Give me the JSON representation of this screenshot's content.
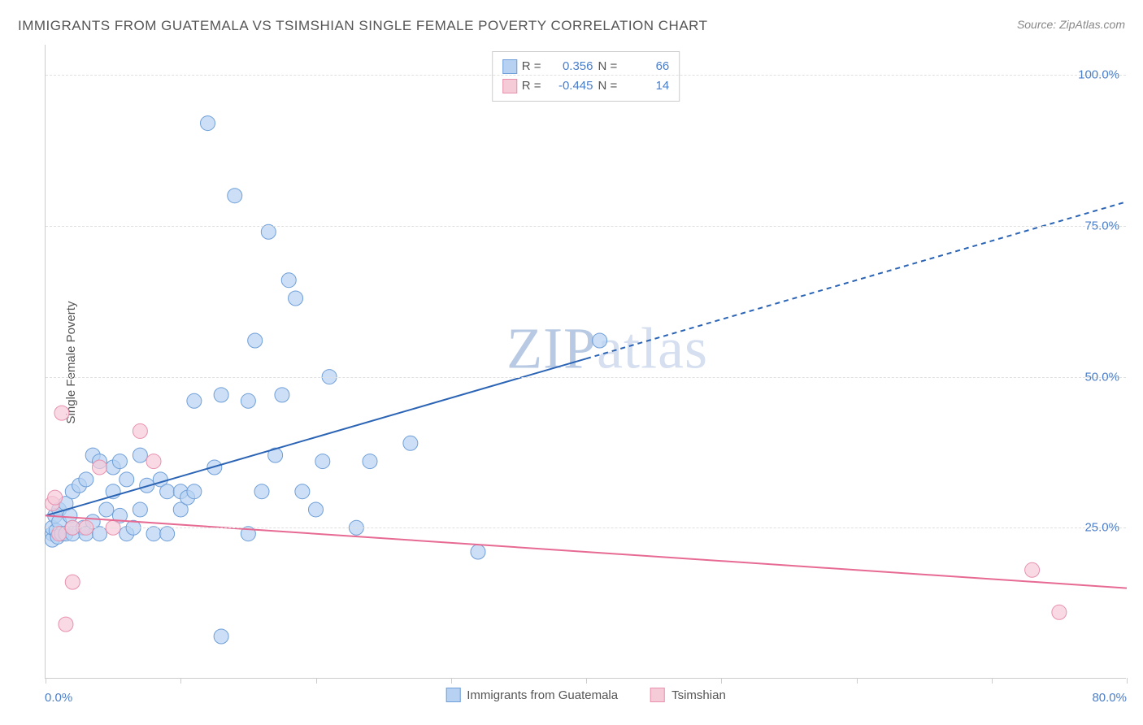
{
  "title": "IMMIGRANTS FROM GUATEMALA VS TSIMSHIAN SINGLE FEMALE POVERTY CORRELATION CHART",
  "source": "Source: ZipAtlas.com",
  "watermark": "ZIPatlas",
  "ylabel": "Single Female Poverty",
  "chart": {
    "type": "scatter",
    "background_color": "#ffffff",
    "grid_color": "#e0e0e0",
    "grid_dash": true,
    "xlim": [
      0,
      80
    ],
    "ylim": [
      0,
      105
    ],
    "xtick_label_0": "0.0%",
    "xtick_label_80": "80.0%",
    "xticks": [
      0,
      10,
      20,
      30,
      40,
      50,
      60,
      70,
      80
    ],
    "yticks": [
      {
        "v": 25,
        "label": "25.0%"
      },
      {
        "v": 50,
        "label": "50.0%"
      },
      {
        "v": 75,
        "label": "75.0%"
      },
      {
        "v": 100,
        "label": "100.0%"
      }
    ],
    "series": [
      {
        "name": "Immigrants from Guatemala",
        "color_fill": "#b7d1f2",
        "color_stroke": "#6f9fd8",
        "marker_radius": 9,
        "marker_opacity": 0.7,
        "r_label": "R =",
        "r_value": "0.356",
        "n_label": "N =",
        "n_value": "66",
        "trend": {
          "color": "#2b64b5",
          "width": 2,
          "solid_x": [
            0,
            40
          ],
          "solid_y": [
            27,
            53
          ],
          "dash_x": [
            40,
            80
          ],
          "dash_y": [
            53,
            79
          ]
        },
        "points": [
          [
            0.5,
            24
          ],
          [
            0.5,
            23
          ],
          [
            0.5,
            25
          ],
          [
            0.7,
            27
          ],
          [
            0.8,
            24.5
          ],
          [
            0.9,
            23.5
          ],
          [
            1,
            26
          ],
          [
            1,
            28
          ],
          [
            1.2,
            24
          ],
          [
            1.5,
            29
          ],
          [
            1.5,
            24
          ],
          [
            1.8,
            27
          ],
          [
            2,
            24
          ],
          [
            2,
            31
          ],
          [
            2,
            25
          ],
          [
            2.5,
            32
          ],
          [
            2.8,
            25
          ],
          [
            3,
            24
          ],
          [
            3,
            33
          ],
          [
            3.5,
            26
          ],
          [
            3.5,
            37
          ],
          [
            4,
            36
          ],
          [
            4,
            24
          ],
          [
            4.5,
            28
          ],
          [
            5,
            35
          ],
          [
            5,
            31
          ],
          [
            5.5,
            27
          ],
          [
            5.5,
            36
          ],
          [
            6,
            24
          ],
          [
            6,
            33
          ],
          [
            6.5,
            25
          ],
          [
            7,
            37
          ],
          [
            7,
            28
          ],
          [
            7.5,
            32
          ],
          [
            8,
            24
          ],
          [
            8.5,
            33
          ],
          [
            9,
            31
          ],
          [
            9,
            24
          ],
          [
            10,
            28
          ],
          [
            10,
            31
          ],
          [
            10.5,
            30
          ],
          [
            11,
            31
          ],
          [
            11,
            46
          ],
          [
            12,
            92
          ],
          [
            12.5,
            35
          ],
          [
            13,
            47
          ],
          [
            14,
            80
          ],
          [
            15,
            24
          ],
          [
            15,
            46
          ],
          [
            15.5,
            56
          ],
          [
            16,
            31
          ],
          [
            16.5,
            74
          ],
          [
            17,
            37
          ],
          [
            17.5,
            47
          ],
          [
            18,
            66
          ],
          [
            18.5,
            63
          ],
          [
            19,
            31
          ],
          [
            20,
            28
          ],
          [
            20.5,
            36
          ],
          [
            21,
            50
          ],
          [
            23,
            25
          ],
          [
            24,
            36
          ],
          [
            27,
            39
          ],
          [
            32,
            21
          ],
          [
            13,
            7
          ],
          [
            41,
            56
          ]
        ]
      },
      {
        "name": "Tsimshian",
        "color_fill": "#f6cbd8",
        "color_stroke": "#e890ad",
        "marker_radius": 9,
        "marker_opacity": 0.7,
        "r_label": "R =",
        "r_value": "-0.445",
        "n_label": "N =",
        "n_value": "14",
        "trend": {
          "color": "#e76a93",
          "width": 2,
          "solid_x": [
            0,
            80
          ],
          "solid_y": [
            27,
            15
          ],
          "dash_x": null,
          "dash_y": null
        },
        "points": [
          [
            0.5,
            29
          ],
          [
            0.7,
            30
          ],
          [
            1,
            24
          ],
          [
            1.2,
            44
          ],
          [
            1.5,
            9
          ],
          [
            2,
            16
          ],
          [
            2,
            25
          ],
          [
            3,
            25
          ],
          [
            4,
            35
          ],
          [
            5,
            25
          ],
          [
            7,
            41
          ],
          [
            8,
            36
          ],
          [
            73,
            18
          ],
          [
            75,
            11
          ]
        ]
      }
    ]
  }
}
